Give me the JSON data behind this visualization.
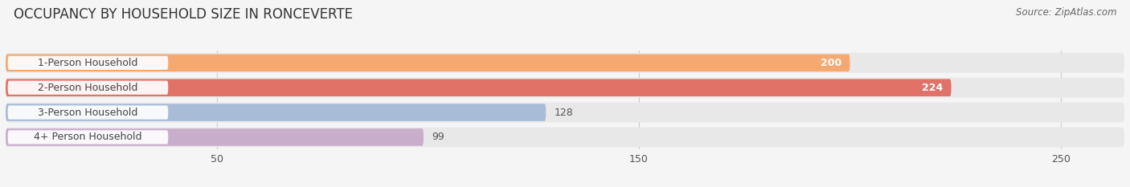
{
  "title": "OCCUPANCY BY HOUSEHOLD SIZE IN RONCEVERTE",
  "source": "Source: ZipAtlas.com",
  "categories": [
    "1-Person Household",
    "2-Person Household",
    "3-Person Household",
    "4+ Person Household"
  ],
  "values": [
    200,
    224,
    128,
    99
  ],
  "bar_colors": [
    "#f5a870",
    "#e07268",
    "#a8bcd8",
    "#c9aecb"
  ],
  "label_colors": [
    "white",
    "white",
    "#555555",
    "#555555"
  ],
  "xlim": [
    0,
    265
  ],
  "xticks": [
    50,
    150,
    250
  ],
  "background_color": "#f5f5f5",
  "bar_background_color": "#e8e8e8",
  "title_fontsize": 12,
  "source_fontsize": 8.5,
  "label_fontsize": 9,
  "value_fontsize": 9
}
